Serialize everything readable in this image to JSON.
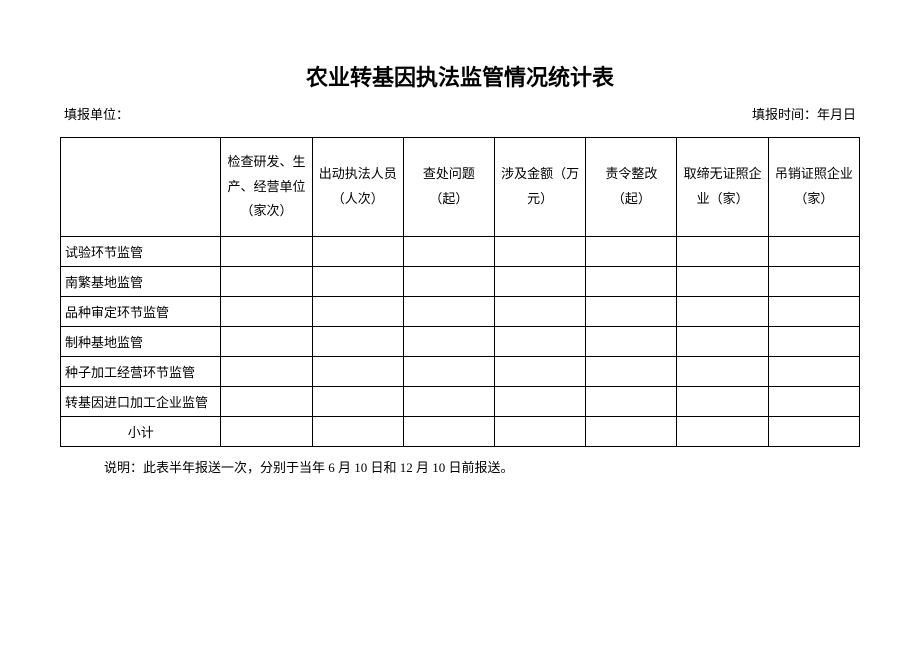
{
  "title": "农业转基因执法监管情况统计表",
  "meta": {
    "unit_label": "填报单位：",
    "time_label": "填报时间：年月日"
  },
  "columns": {
    "c0": "",
    "c1": "检查研发、生产、经营单位（家次）",
    "c2": "出动执法人员（人次）",
    "c3": "查处问题（起）",
    "c4": "涉及金额（万元）",
    "c5": "责令整改（起）",
    "c6": "取缔无证照企业（家）",
    "c7": "吊销证照企业（家）"
  },
  "rows": {
    "r0": {
      "label": "试验环节监管"
    },
    "r1": {
      "label": "南繁基地监管"
    },
    "r2": {
      "label": "品种审定环节监管"
    },
    "r3": {
      "label": "制种基地监管"
    },
    "r4": {
      "label": "种子加工经营环节监管"
    },
    "r5": {
      "label": "转基因进口加工企业监管"
    },
    "r6": {
      "label": "小计"
    }
  },
  "note": "说明：此表半年报送一次，分别于当年 6 月 10 日和 12 月 10 日前报送。"
}
